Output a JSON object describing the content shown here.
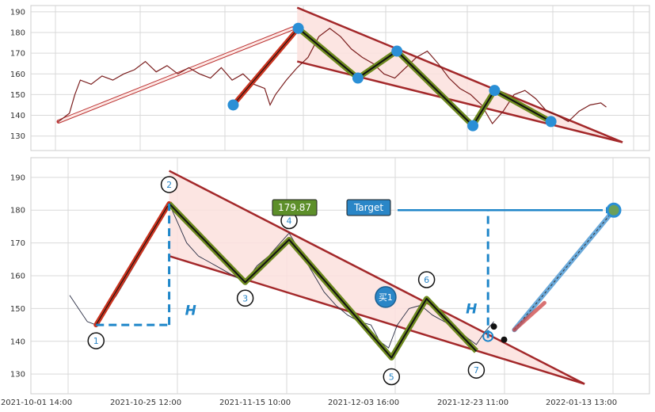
{
  "chart_data": [
    {
      "type": "line",
      "name_ref": "overview",
      "ylim": [
        123,
        193
      ],
      "yticks": [
        130,
        140,
        150,
        160,
        170,
        180,
        190
      ],
      "price_line": [
        [
          0.0,
          137
        ],
        [
          0.5,
          139
        ],
        [
          1.0,
          141
        ],
        [
          1.5,
          150
        ],
        [
          2.0,
          157
        ],
        [
          3.0,
          155
        ],
        [
          4.0,
          159
        ],
        [
          5.0,
          157
        ],
        [
          6.0,
          160
        ],
        [
          7.0,
          162
        ],
        [
          8.0,
          166
        ],
        [
          9.0,
          161
        ],
        [
          10.0,
          164
        ],
        [
          11.0,
          160
        ],
        [
          12.0,
          163
        ],
        [
          13.0,
          160
        ],
        [
          14.0,
          158
        ],
        [
          15.0,
          163
        ],
        [
          16.0,
          157
        ],
        [
          17.0,
          160
        ],
        [
          18.0,
          155
        ],
        [
          19.0,
          153
        ],
        [
          19.5,
          145
        ],
        [
          20.0,
          150
        ],
        [
          21.0,
          157
        ],
        [
          22.0,
          163
        ],
        [
          23.0,
          168
        ],
        [
          24.0,
          178
        ],
        [
          25.0,
          182
        ],
        [
          26.0,
          178
        ],
        [
          27.0,
          172
        ],
        [
          28.0,
          168
        ],
        [
          29.0,
          165
        ],
        [
          30.0,
          160
        ],
        [
          31.0,
          158
        ],
        [
          32.0,
          163
        ],
        [
          33.0,
          168
        ],
        [
          34.0,
          171
        ],
        [
          35.0,
          165
        ],
        [
          36.0,
          158
        ],
        [
          37.0,
          153
        ],
        [
          38.0,
          150
        ],
        [
          39.0,
          145
        ],
        [
          40.0,
          136
        ],
        [
          41.0,
          142
        ],
        [
          42.0,
          150
        ],
        [
          43.0,
          152
        ],
        [
          44.0,
          148
        ],
        [
          45.0,
          142
        ],
        [
          46.0,
          140
        ],
        [
          47.0,
          137
        ],
        [
          48.0,
          142
        ],
        [
          49.0,
          145
        ],
        [
          50.0,
          146
        ],
        [
          50.5,
          144
        ]
      ],
      "pivots": [
        [
          16.1,
          145
        ],
        [
          22.1,
          182
        ],
        [
          27.6,
          158
        ],
        [
          31.2,
          171
        ],
        [
          38.2,
          135
        ],
        [
          40.2,
          152
        ],
        [
          45.4,
          137
        ]
      ],
      "channel_upper": [
        [
          22.0,
          192
        ],
        [
          52.0,
          127
        ]
      ],
      "channel_lower": [
        [
          22.0,
          166
        ],
        [
          52.0,
          127
        ]
      ],
      "projection_arrow": [
        [
          0.0,
          137
        ],
        [
          21.6,
          182
        ]
      ]
    },
    {
      "type": "line",
      "name_ref": "detail",
      "ylim": [
        124,
        196
      ],
      "yticks": [
        130,
        140,
        150,
        160,
        170,
        180,
        190
      ],
      "x_ticklabels": [
        "2021-10-01 14:00",
        "2021-10-25 12:00",
        "2021-11-15 10:00",
        "2021-12-03 16:00",
        "2021-12-23 11:00",
        "2022-01-13 13:00"
      ],
      "price_line": [
        [
          0.0,
          154
        ],
        [
          0.3,
          150
        ],
        [
          0.6,
          146
        ],
        [
          0.9,
          145
        ],
        [
          1.2,
          149
        ],
        [
          1.6,
          154
        ],
        [
          2.0,
          160
        ],
        [
          2.4,
          166
        ],
        [
          2.8,
          172
        ],
        [
          3.2,
          178
        ],
        [
          3.4,
          182
        ],
        [
          3.7,
          176
        ],
        [
          4.0,
          170
        ],
        [
          4.4,
          166
        ],
        [
          4.8,
          164
        ],
        [
          5.2,
          162
        ],
        [
          5.6,
          160
        ],
        [
          6.0,
          158
        ],
        [
          6.4,
          163
        ],
        [
          6.8,
          166
        ],
        [
          7.2,
          170
        ],
        [
          7.5,
          173
        ],
        [
          7.9,
          167
        ],
        [
          8.3,
          161
        ],
        [
          8.7,
          155
        ],
        [
          9.1,
          151
        ],
        [
          9.5,
          148
        ],
        [
          9.9,
          146
        ],
        [
          10.3,
          145
        ],
        [
          10.6,
          140
        ],
        [
          10.9,
          138
        ],
        [
          11.2,
          145
        ],
        [
          11.6,
          150
        ],
        [
          12.0,
          151
        ],
        [
          12.4,
          148
        ],
        [
          12.8,
          146
        ],
        [
          13.2,
          144
        ],
        [
          13.6,
          141
        ],
        [
          13.9,
          139
        ],
        [
          14.2,
          143
        ],
        [
          14.5,
          146
        ]
      ],
      "wave_points": [
        {
          "label": "1",
          "x": 0.9,
          "y": 145
        },
        {
          "label": "2",
          "x": 3.4,
          "y": 182
        },
        {
          "label": "3",
          "x": 6.0,
          "y": 158
        },
        {
          "label": "4",
          "x": 7.5,
          "y": 171
        },
        {
          "label": "5",
          "x": 11.0,
          "y": 135
        },
        {
          "label": "6",
          "x": 12.2,
          "y": 153
        },
        {
          "label": "7",
          "x": 13.9,
          "y": 137
        }
      ],
      "channel_upper": [
        [
          3.4,
          192
        ],
        [
          17.6,
          127
        ]
      ],
      "channel_lower": [
        [
          3.4,
          166
        ],
        [
          17.6,
          127
        ]
      ],
      "price_box": "179.87",
      "target_label": "Target",
      "target_price": 180,
      "buy_label": "买1",
      "buy_point": {
        "x": 10.8,
        "y": 153.5
      },
      "h_label": "H",
      "h_left": {
        "x0": 0.9,
        "x1": 3.4,
        "ybottom": 145,
        "ytop": 182
      },
      "h_right": {
        "x": 14.3,
        "ybottom": 141,
        "ytop": 180
      },
      "target_point": {
        "x": 18.6,
        "y": 180
      },
      "forecast_start": {
        "x": 15.2,
        "y": 143.5
      }
    }
  ],
  "colors": {
    "price": "#7a1e1e",
    "channel_line": "#a3282a",
    "channel_fill": "#fbe0dd",
    "wave_outer": "#6e8a1f",
    "wave_inner": "#111111",
    "impulse": "#c8321e",
    "pivot_dot": "#2a8fd6",
    "guide": "#1f86c9",
    "forecast": "#5aa0d6",
    "price_box_bg": "#5d8f2a",
    "target_bg": "#2a86c7",
    "grid": "#d9d9d9",
    "axis_text": "#333333"
  }
}
